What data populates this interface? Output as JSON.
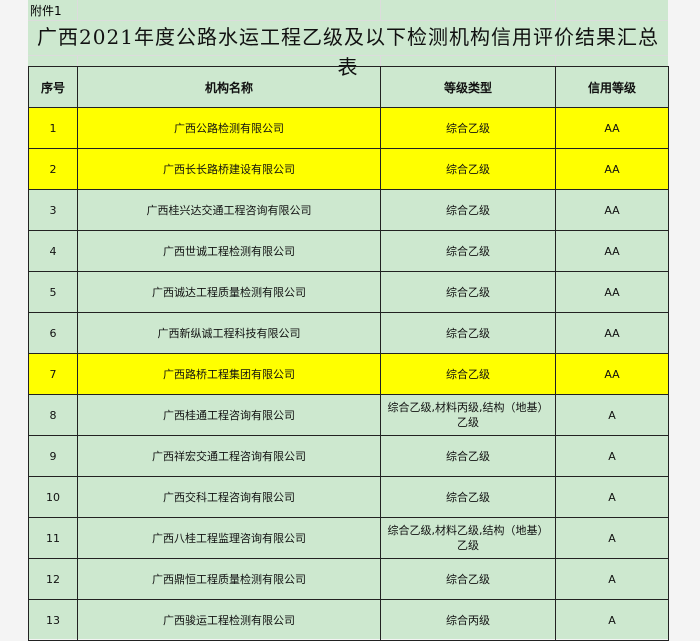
{
  "attachment": "附件1",
  "title": "广西2021年度公路水运工程乙级及以下检测机构信用评价结果汇总表",
  "headers": [
    "序号",
    "机构名称",
    "等级类型",
    "信用等级"
  ],
  "colors": {
    "background": "#cde8cf",
    "highlight": "#ffff00"
  },
  "rows": [
    {
      "no": "1",
      "name": "广西公路检测有限公司",
      "type": "综合乙级",
      "credit": "AA",
      "highlight": true
    },
    {
      "no": "2",
      "name": "广西长长路桥建设有限公司",
      "type": "综合乙级",
      "credit": "AA",
      "highlight": true
    },
    {
      "no": "3",
      "name": "广西桂兴达交通工程咨询有限公司",
      "type": "综合乙级",
      "credit": "AA",
      "highlight": false
    },
    {
      "no": "4",
      "name": "广西世诚工程检测有限公司",
      "type": "综合乙级",
      "credit": "AA",
      "highlight": false
    },
    {
      "no": "5",
      "name": "广西诚达工程质量检测有限公司",
      "type": "综合乙级",
      "credit": "AA",
      "highlight": false
    },
    {
      "no": "6",
      "name": "广西新纵诚工程科技有限公司",
      "type": "综合乙级",
      "credit": "AA",
      "highlight": false
    },
    {
      "no": "7",
      "name": "广西路桥工程集团有限公司",
      "type": "综合乙级",
      "credit": "AA",
      "highlight": true
    },
    {
      "no": "8",
      "name": "广西桂通工程咨询有限公司",
      "type": "综合乙级,材料丙级,结构（地基）乙级",
      "credit": "A",
      "highlight": false
    },
    {
      "no": "9",
      "name": "广西祥宏交通工程咨询有限公司",
      "type": "综合乙级",
      "credit": "A",
      "highlight": false
    },
    {
      "no": "10",
      "name": "广西交科工程咨询有限公司",
      "type": "综合乙级",
      "credit": "A",
      "highlight": false
    },
    {
      "no": "11",
      "name": "广西八桂工程监理咨询有限公司",
      "type": "综合乙级,材料乙级,结构（地基）乙级",
      "credit": "A",
      "highlight": false
    },
    {
      "no": "12",
      "name": "广西鼎恒工程质量检测有限公司",
      "type": "综合乙级",
      "credit": "A",
      "highlight": false
    },
    {
      "no": "13",
      "name": "广西骏运工程检测有限公司",
      "type": "综合丙级",
      "credit": "A",
      "highlight": false
    }
  ]
}
